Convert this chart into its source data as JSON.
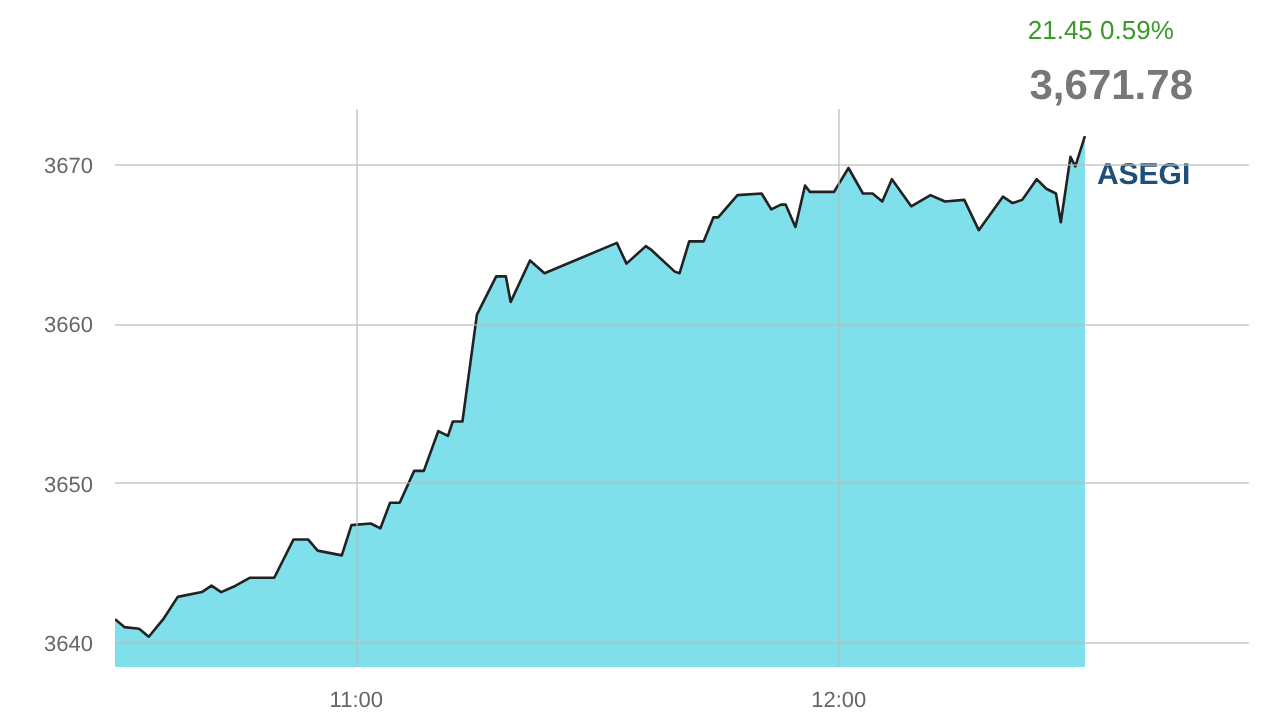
{
  "chart_data": {
    "type": "area",
    "title": "3,671.78",
    "subtitle": "21.45  0.59%",
    "x": [
      10.5,
      10.52,
      10.55,
      10.57,
      10.6,
      10.63,
      10.68,
      10.7,
      10.72,
      10.75,
      10.78,
      10.83,
      10.87,
      10.9,
      10.92,
      10.97,
      10.99,
      11.03,
      11.05,
      11.07,
      11.09,
      11.12,
      11.14,
      11.17,
      11.19,
      11.2,
      11.22,
      11.25,
      11.29,
      11.31,
      11.32,
      11.36,
      11.39,
      11.54,
      11.56,
      11.6,
      11.61,
      11.66,
      11.67,
      11.69,
      11.72,
      11.74,
      11.75,
      11.79,
      11.84,
      11.86,
      11.88,
      11.89,
      11.91,
      11.93,
      11.94,
      11.99,
      12.02,
      12.05,
      12.07,
      12.09,
      12.11,
      12.15,
      12.19,
      12.22,
      12.26,
      12.29,
      12.34,
      12.36,
      12.38,
      12.41,
      12.43,
      12.45,
      12.46,
      12.48,
      12.49,
      12.51
    ],
    "series": [
      {
        "name": "ASEGI",
        "color": "#7fdfea",
        "values": [
          3641.5,
          3641.0,
          3640.9,
          3640.4,
          3641.5,
          3642.9,
          3643.2,
          3643.6,
          3643.2,
          3643.6,
          3644.1,
          3644.1,
          3646.5,
          3646.5,
          3645.8,
          3645.5,
          3647.4,
          3647.5,
          3647.2,
          3648.8,
          3648.8,
          3650.8,
          3650.8,
          3653.3,
          3653.0,
          3653.9,
          3653.9,
          3660.6,
          3663.0,
          3663.0,
          3661.4,
          3664.0,
          3663.2,
          3665.1,
          3663.8,
          3664.9,
          3664.7,
          3663.3,
          3663.2,
          3665.2,
          3665.2,
          3666.7,
          3666.7,
          3668.1,
          3668.2,
          3667.2,
          3667.5,
          3667.5,
          3666.1,
          3668.7,
          3668.3,
          3668.3,
          3669.8,
          3668.2,
          3668.2,
          3667.7,
          3669.1,
          3667.4,
          3668.1,
          3667.7,
          3667.8,
          3665.9,
          3668.0,
          3667.6,
          3667.8,
          3669.1,
          3668.5,
          3668.2,
          3666.4,
          3670.5,
          3669.9,
          3671.8
        ]
      }
    ],
    "xlim": [
      10.5,
      12.85
    ],
    "xticks": [
      {
        "value": 11,
        "label": "11:00"
      },
      {
        "value": 12,
        "label": "12:00"
      }
    ],
    "ylim": [
      3638.5,
      3673.5
    ],
    "yticks": [
      3640,
      3650,
      3660,
      3670
    ],
    "grid": true
  }
}
